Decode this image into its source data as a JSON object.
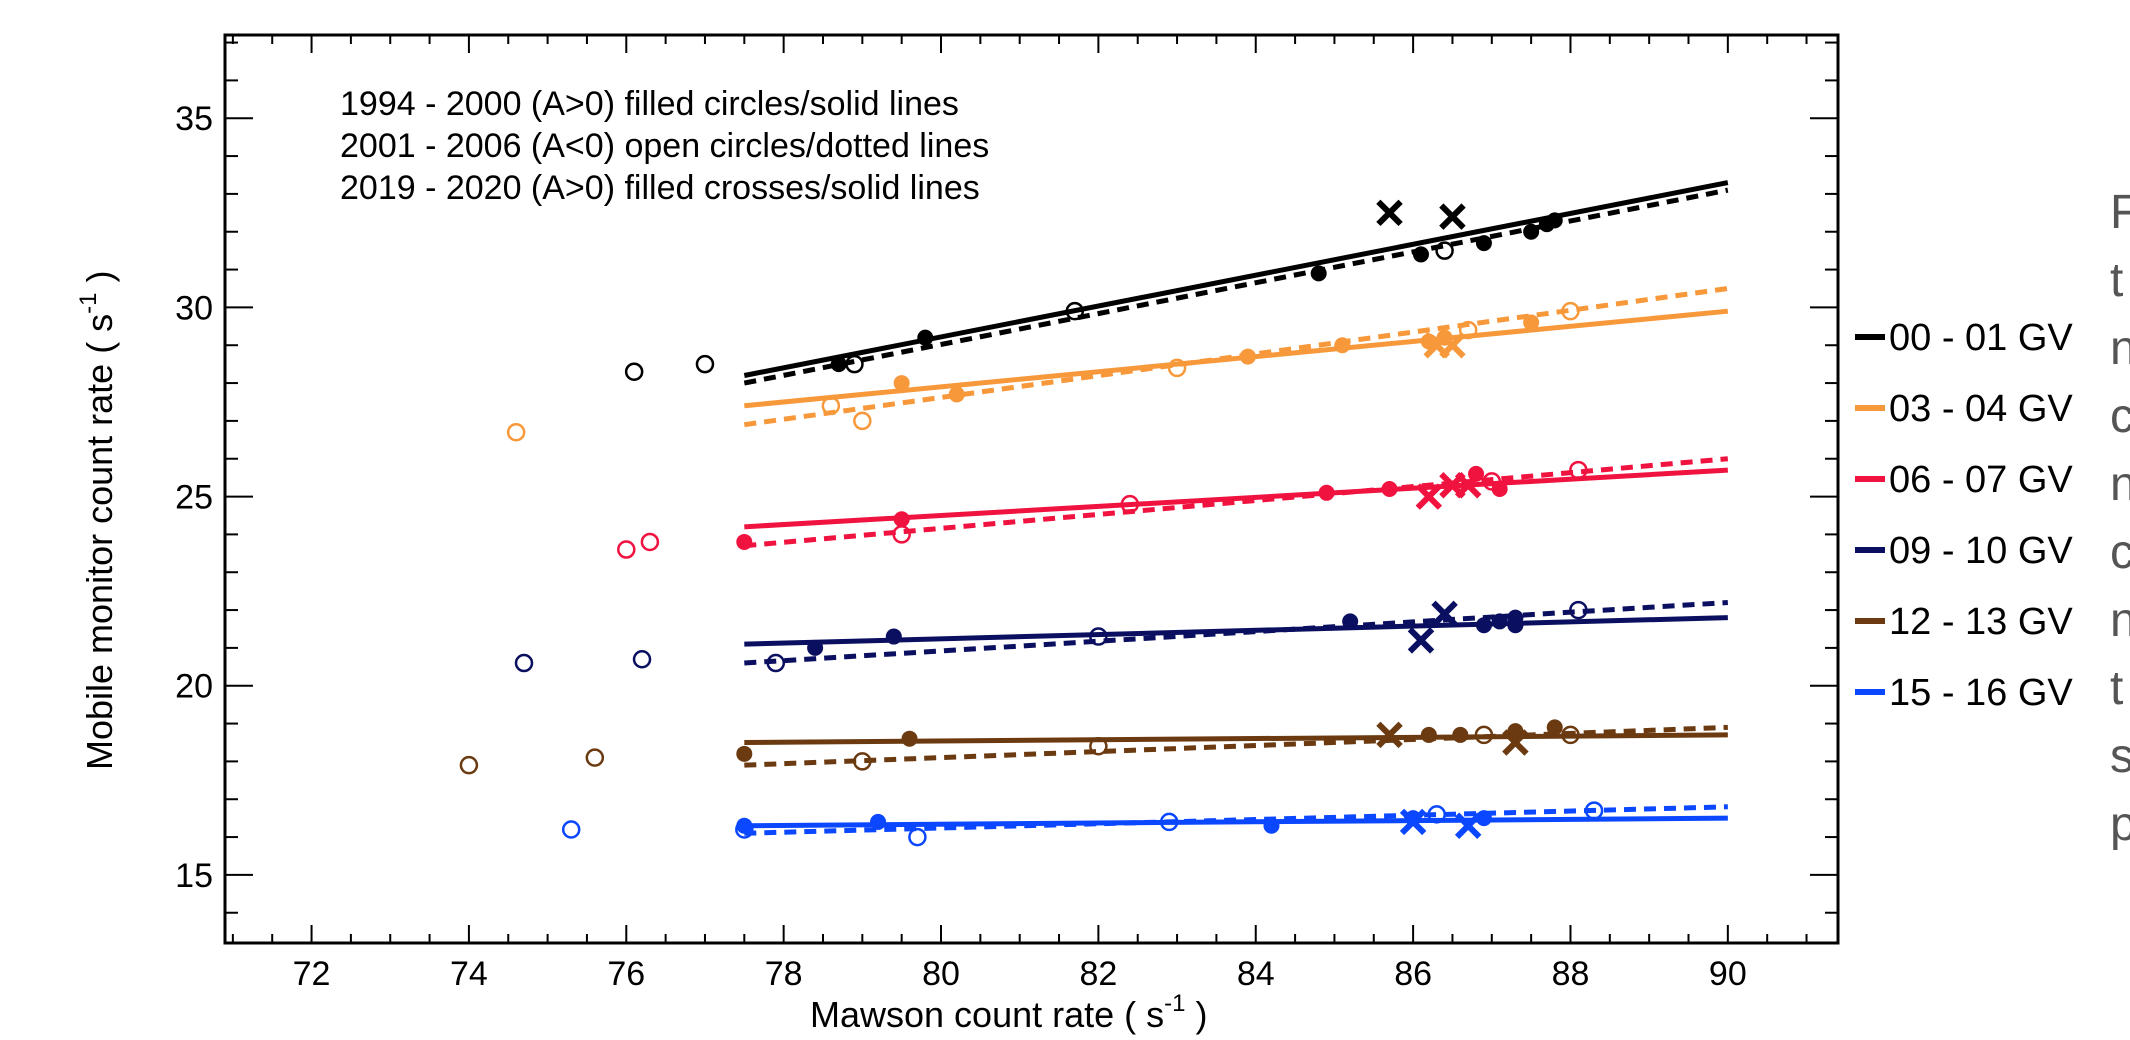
{
  "chart_data": {
    "type": "scatter",
    "xlabel": "Mawson count rate ( s",
    "xlabel_sup": "-1",
    "xlabel_end": " )",
    "ylabel": "Mobile  monitor count rate ( s",
    "ylabel_sup": "-1",
    "ylabel_end": " )",
    "xlim": [
      70.9,
      91.4
    ],
    "ylim": [
      13.2,
      37.2
    ],
    "xticks": [
      72,
      74,
      76,
      78,
      80,
      82,
      84,
      86,
      88,
      90
    ],
    "yticks": [
      15,
      20,
      25,
      30,
      35
    ],
    "grid": false,
    "legend_position": "right-outside",
    "annotations": [
      "1994 - 2000 (A>0) filled circles/solid lines",
      "2001 - 2006 (A<0) open circles/dotted lines",
      "2019 - 2020 (A>0) filled crosses/solid lines"
    ],
    "series": [
      {
        "name": "00 - 01 GV",
        "color": "#000000",
        "filled": [
          [
            78.7,
            28.5
          ],
          [
            79.8,
            29.2
          ],
          [
            84.8,
            30.9
          ],
          [
            86.1,
            31.4
          ],
          [
            86.9,
            31.7
          ],
          [
            87.5,
            32.0
          ],
          [
            87.7,
            32.2
          ],
          [
            87.8,
            32.3
          ]
        ],
        "open": [
          [
            78.9,
            28.5
          ],
          [
            81.7,
            29.9
          ],
          [
            86.4,
            31.5
          ],
          [
            76.1,
            28.3
          ],
          [
            77.0,
            28.5
          ]
        ],
        "crosses": [
          [
            85.7,
            32.5
          ],
          [
            86.5,
            32.4
          ]
        ],
        "solid_line": [
          [
            77.5,
            28.2
          ],
          [
            90,
            33.3
          ]
        ],
        "dotted_line": [
          [
            77.5,
            28.0
          ],
          [
            90,
            33.1
          ]
        ]
      },
      {
        "name": "03 - 04 GV",
        "color": "#f7983b",
        "filled": [
          [
            79.5,
            28.0
          ],
          [
            80.2,
            27.7
          ],
          [
            83.9,
            28.7
          ],
          [
            85.1,
            29.0
          ],
          [
            86.2,
            29.1
          ],
          [
            86.4,
            29.2
          ],
          [
            87.5,
            29.6
          ]
        ],
        "open": [
          [
            78.6,
            27.4
          ],
          [
            79.0,
            27.0
          ],
          [
            83.0,
            28.4
          ],
          [
            86.7,
            29.4
          ],
          [
            88.0,
            29.9
          ],
          [
            74.6,
            26.7
          ]
        ],
        "crosses": [
          [
            86.3,
            29.0
          ],
          [
            86.5,
            29.0
          ]
        ],
        "solid_line": [
          [
            77.5,
            27.4
          ],
          [
            90,
            29.9
          ]
        ],
        "dotted_line": [
          [
            77.5,
            26.9
          ],
          [
            90,
            30.5
          ]
        ]
      },
      {
        "name": "06 - 07 GV",
        "color": "#f0123f",
        "filled": [
          [
            77.5,
            23.8
          ],
          [
            79.5,
            24.4
          ],
          [
            84.9,
            25.1
          ],
          [
            85.7,
            25.2
          ],
          [
            86.8,
            25.6
          ],
          [
            87.1,
            25.2
          ]
        ],
        "open": [
          [
            79.5,
            24.0
          ],
          [
            82.4,
            24.8
          ],
          [
            87.0,
            25.4
          ],
          [
            88.1,
            25.7
          ],
          [
            76.0,
            23.6
          ],
          [
            76.3,
            23.8
          ]
        ],
        "crosses": [
          [
            86.2,
            25.0
          ],
          [
            86.5,
            25.3
          ],
          [
            86.7,
            25.3
          ]
        ],
        "solid_line": [
          [
            77.5,
            24.2
          ],
          [
            90,
            25.7
          ]
        ],
        "dotted_line": [
          [
            77.5,
            23.7
          ],
          [
            90,
            26.0
          ]
        ]
      },
      {
        "name": "09 - 10 GV",
        "color": "#0a0f60",
        "filled": [
          [
            78.4,
            21.0
          ],
          [
            79.4,
            21.3
          ],
          [
            85.2,
            21.7
          ],
          [
            86.9,
            21.6
          ],
          [
            87.1,
            21.7
          ],
          [
            87.3,
            21.8
          ],
          [
            87.3,
            21.6
          ]
        ],
        "open": [
          [
            77.9,
            20.6
          ],
          [
            82.0,
            21.3
          ],
          [
            88.1,
            22.0
          ],
          [
            74.7,
            20.6
          ],
          [
            76.2,
            20.7
          ]
        ],
        "crosses": [
          [
            86.1,
            21.2
          ],
          [
            86.4,
            21.9
          ]
        ],
        "solid_line": [
          [
            77.5,
            21.1
          ],
          [
            90,
            21.8
          ]
        ],
        "dotted_line": [
          [
            77.5,
            20.6
          ],
          [
            90,
            22.2
          ]
        ]
      },
      {
        "name": "12 - 13 GV",
        "color": "#6b3a10",
        "filled": [
          [
            77.5,
            18.2
          ],
          [
            79.6,
            18.6
          ],
          [
            86.2,
            18.7
          ],
          [
            86.6,
            18.7
          ],
          [
            87.3,
            18.8
          ],
          [
            87.8,
            18.9
          ]
        ],
        "open": [
          [
            79.0,
            18.0
          ],
          [
            82.0,
            18.4
          ],
          [
            86.9,
            18.7
          ],
          [
            88.0,
            18.7
          ],
          [
            74.0,
            17.9
          ],
          [
            75.6,
            18.1
          ]
        ],
        "crosses": [
          [
            85.7,
            18.7
          ],
          [
            87.3,
            18.5
          ]
        ],
        "solid_line": [
          [
            77.5,
            18.5
          ],
          [
            90,
            18.7
          ]
        ],
        "dotted_line": [
          [
            77.5,
            17.9
          ],
          [
            90,
            18.9
          ]
        ]
      },
      {
        "name": "15 - 16 GV",
        "color": "#0a47ff",
        "filled": [
          [
            77.5,
            16.3
          ],
          [
            79.2,
            16.4
          ],
          [
            84.2,
            16.3
          ],
          [
            86.0,
            16.5
          ],
          [
            86.9,
            16.5
          ]
        ],
        "open": [
          [
            77.5,
            16.2
          ],
          [
            79.7,
            16.0
          ],
          [
            82.9,
            16.4
          ],
          [
            86.3,
            16.6
          ],
          [
            88.3,
            16.7
          ],
          [
            75.3,
            16.2
          ]
        ],
        "crosses": [
          [
            86.0,
            16.4
          ],
          [
            86.7,
            16.3
          ]
        ],
        "solid_line": [
          [
            77.5,
            16.3
          ],
          [
            90,
            16.5
          ]
        ],
        "dotted_line": [
          [
            77.5,
            16.1
          ],
          [
            90,
            16.8
          ]
        ]
      }
    ]
  },
  "side_panel_chars": [
    "F",
    "t",
    "n",
    "c",
    "n",
    "c",
    "n",
    "t",
    "s",
    "p"
  ],
  "side_panel_accent": "#6b1b2a"
}
